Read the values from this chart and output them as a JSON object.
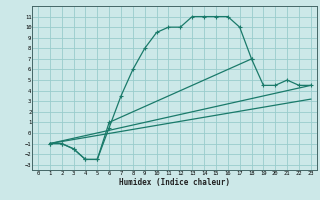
{
  "xlabel": "Humidex (Indice chaleur)",
  "background_color": "#cce8e8",
  "grid_color": "#99cccc",
  "line_color": "#1a7a6a",
  "xlim": [
    -0.5,
    23.5
  ],
  "ylim": [
    -3.5,
    12.0
  ],
  "xticks": [
    0,
    1,
    2,
    3,
    4,
    5,
    6,
    7,
    8,
    9,
    10,
    11,
    12,
    13,
    14,
    15,
    16,
    17,
    18,
    19,
    20,
    21,
    22,
    23
  ],
  "yticks": [
    -3,
    -2,
    -1,
    0,
    1,
    2,
    3,
    4,
    5,
    6,
    7,
    8,
    9,
    10,
    11
  ],
  "curve1_x": [
    1,
    2,
    3,
    4,
    5,
    6,
    7,
    8,
    9,
    10,
    11,
    12,
    13,
    14,
    15,
    16,
    17,
    18
  ],
  "curve1_y": [
    -1,
    -1,
    -1.5,
    -2.5,
    -2.5,
    0.5,
    3.5,
    6.0,
    8.0,
    9.5,
    10.0,
    10.0,
    11.0,
    11.0,
    11.0,
    11.0,
    10.0,
    7.0
  ],
  "curve2_x": [
    1,
    2,
    3,
    4,
    5,
    6,
    18,
    19,
    20,
    21,
    22,
    23
  ],
  "curve2_y": [
    -1,
    -1,
    -1.5,
    -2.5,
    -2.5,
    1.0,
    7.0,
    4.5,
    4.5,
    5.0,
    4.5,
    4.5
  ],
  "line1_x": [
    1,
    23
  ],
  "line1_y": [
    -1.0,
    4.5
  ],
  "line2_x": [
    1,
    23
  ],
  "line2_y": [
    -1.0,
    3.2
  ]
}
